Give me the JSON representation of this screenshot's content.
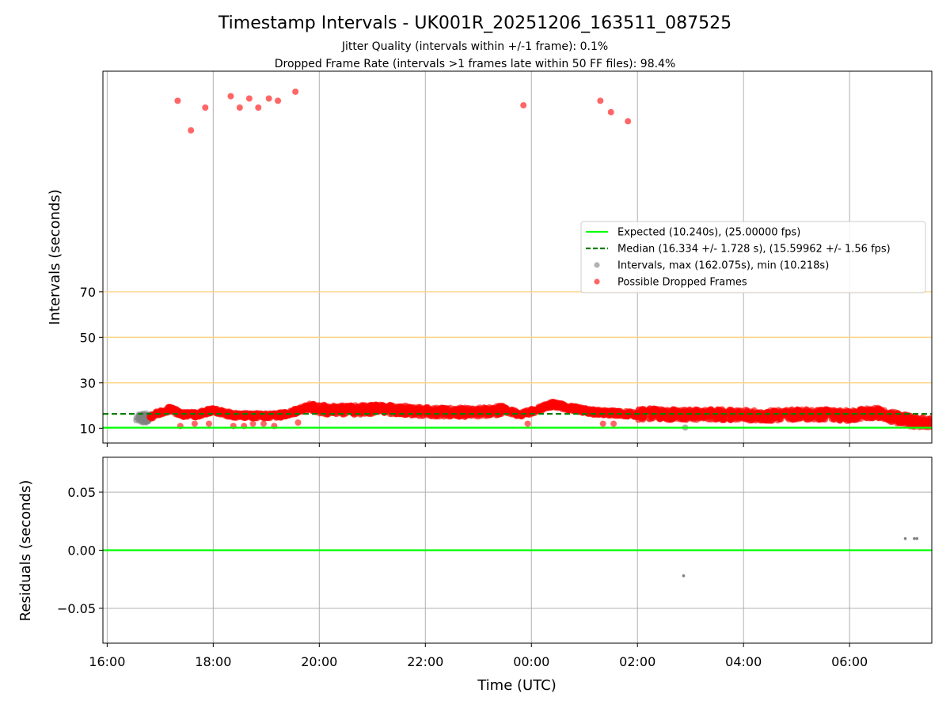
{
  "chart_data": [
    {
      "type": "scatter",
      "title": "Timestamp Intervals - UK001R_20251206_163511_087525",
      "subtitle_1": "Jitter Quality (intervals within +/-1 frame): 0.1%",
      "subtitle_2": "Dropped Frame Rate (intervals >1 frames late within 50 FF files): 98.4%",
      "xlabel": "",
      "ylabel": "Intervals (seconds)",
      "x_unit": "hours since 16:00 UTC",
      "xlim": [
        -0.08,
        15.55
      ],
      "ylim": [
        3.5,
        167
      ],
      "y_tick_values": [
        10,
        30,
        50,
        70
      ],
      "y_tick_labels": [
        "10",
        "30",
        "50",
        "70"
      ],
      "x_tick_values": [
        0,
        2,
        4,
        6,
        8,
        10,
        12,
        14
      ],
      "grid": "vertical",
      "threshold_lines": [
        30,
        50,
        70
      ],
      "threshold_color": "#ffd27f",
      "expected_value": 10.24,
      "median_value": 16.334,
      "legend": {
        "placement": "center-right",
        "entries": [
          {
            "label": "Expected (10.240s), (25.00000 fps)",
            "kind": "line",
            "color": "#00ff00"
          },
          {
            "label": "Median (16.334 +/- 1.728 s), (15.59962 +/- 1.56 fps)",
            "kind": "dashed",
            "color": "#007f00"
          },
          {
            "label": "Intervals, max (162.075s), min (10.218s)",
            "kind": "point",
            "color": "#808080"
          },
          {
            "label": "Possible Dropped Frames",
            "kind": "point",
            "color": "#ff0000"
          }
        ]
      },
      "series": [
        {
          "name": "Intervals",
          "color": "#808080",
          "points": [
            [
              0.55,
              13.5
            ],
            [
              0.6,
              15.2
            ],
            [
              0.62,
              14.1
            ],
            [
              0.65,
              16.0
            ],
            [
              0.68,
              12.8
            ],
            [
              0.7,
              15.6
            ],
            [
              0.72,
              14.4
            ],
            [
              0.75,
              13.2
            ],
            [
              0.78,
              15.9
            ],
            [
              0.8,
              14.8
            ],
            [
              10.9,
              10.3
            ]
          ]
        },
        {
          "name": "Possible Dropped Frames",
          "color": "#ff0000",
          "outliers": [
            [
              1.33,
              154
            ],
            [
              1.58,
              141
            ],
            [
              1.85,
              151
            ],
            [
              2.33,
              156
            ],
            [
              2.5,
              151
            ],
            [
              2.68,
              155
            ],
            [
              2.85,
              151
            ],
            [
              3.05,
              155
            ],
            [
              3.22,
              154
            ],
            [
              3.55,
              158
            ],
            [
              7.85,
              152
            ],
            [
              9.3,
              154
            ],
            [
              9.5,
              149
            ],
            [
              9.82,
              145
            ],
            [
              1.38,
              11
            ],
            [
              1.65,
              12
            ],
            [
              1.92,
              12
            ],
            [
              2.38,
              11
            ],
            [
              2.58,
              11
            ],
            [
              2.75,
              12
            ],
            [
              2.95,
              12
            ],
            [
              3.15,
              11
            ],
            [
              3.6,
              12.5
            ],
            [
              7.93,
              12
            ],
            [
              9.35,
              12
            ],
            [
              9.55,
              12
            ]
          ],
          "band_profile": [
            [
              0.8,
              15
            ],
            [
              1.0,
              17
            ],
            [
              1.2,
              18.5
            ],
            [
              1.4,
              16
            ],
            [
              1.7,
              16
            ],
            [
              2.0,
              18
            ],
            [
              2.2,
              16.5
            ],
            [
              2.5,
              15.5
            ],
            [
              2.8,
              15.5
            ],
            [
              3.2,
              15.5
            ],
            [
              3.5,
              17
            ],
            [
              3.75,
              19
            ],
            [
              4.2,
              18
            ],
            [
              4.7,
              18
            ],
            [
              5.2,
              18.5
            ],
            [
              5.6,
              18
            ],
            [
              6.0,
              17.2
            ],
            [
              6.5,
              17
            ],
            [
              7.0,
              17
            ],
            [
              7.5,
              18
            ],
            [
              7.8,
              16
            ],
            [
              8.1,
              18
            ],
            [
              8.4,
              20.5
            ],
            [
              8.7,
              19
            ],
            [
              9.2,
              17
            ],
            [
              9.7,
              16.5
            ],
            [
              10.0,
              16
            ],
            [
              10.3,
              16.5
            ],
            [
              10.6,
              16
            ],
            [
              11.0,
              16
            ],
            [
              11.5,
              16
            ],
            [
              12.0,
              15.8
            ],
            [
              12.5,
              15.5
            ],
            [
              13.0,
              16
            ],
            [
              13.5,
              16
            ],
            [
              14.0,
              15.5
            ],
            [
              14.5,
              17
            ],
            [
              14.8,
              15
            ],
            [
              15.0,
              14
            ],
            [
              15.2,
              13
            ],
            [
              15.55,
              12.5
            ]
          ]
        }
      ]
    },
    {
      "type": "scatter",
      "title": "",
      "xlabel": "Time (UTC)",
      "ylabel": "Residuals (seconds)",
      "xlim": [
        -0.08,
        15.55
      ],
      "ylim": [
        -0.08,
        0.08
      ],
      "y_tick_values": [
        -0.05,
        0.0,
        0.05
      ],
      "y_tick_labels": [
        "−0.05",
        "0.00",
        "0.05"
      ],
      "x_tick_values": [
        0,
        2,
        4,
        6,
        8,
        10,
        12,
        14
      ],
      "x_tick_labels": [
        "16:00",
        "18:00",
        "20:00",
        "22:00",
        "00:00",
        "02:00",
        "04:00",
        "06:00"
      ],
      "grid": "both",
      "zero_line_color": "#00ff00",
      "series": [
        {
          "name": "Residuals",
          "color": "#808080",
          "points": [
            [
              10.87,
              -0.022
            ],
            [
              15.05,
              0.01
            ],
            [
              15.22,
              0.01
            ],
            [
              15.27,
              0.01
            ]
          ]
        }
      ]
    }
  ]
}
